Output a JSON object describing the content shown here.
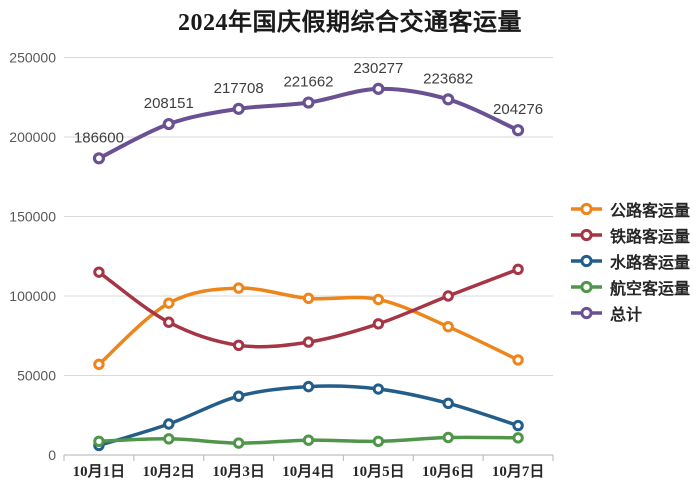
{
  "title": "2024年国庆假期综合交通客运量",
  "colors": {
    "road": "#EE851B",
    "rail": "#A63545",
    "water": "#235E8A",
    "air": "#50964A",
    "total": "#6A5193",
    "gridline": "#DADADA",
    "axis_line": "#C0C0C0",
    "y_tick_text": "#595959",
    "x_tick_text": "#262626",
    "data_label_text": "#3F3F3F",
    "legend_text": "#262626",
    "background": "#FFFFFF"
  },
  "y_axis": {
    "tick_labels": [
      "0",
      "50000",
      "100000",
      "150000",
      "200000",
      "250000"
    ]
  },
  "chart_data": {
    "type": "line",
    "title": "2024年国庆假期综合交通客运量",
    "categories": [
      "10月1日",
      "10月2日",
      "10月3日",
      "10月4日",
      "10月5日",
      "10月6日",
      "10月7日"
    ],
    "series": [
      {
        "name": "公路客运量",
        "key": "road",
        "color": "#EE851B",
        "values": [
          57000,
          95500,
          105000,
          98500,
          97800,
          80700,
          59800
        ]
      },
      {
        "name": "铁路客运量",
        "key": "rail",
        "color": "#A63545",
        "values": [
          115000,
          83500,
          69000,
          71000,
          82500,
          100000,
          116800
        ]
      },
      {
        "name": "水路客运量",
        "key": "water",
        "color": "#235E8A",
        "values": [
          6000,
          19500,
          37000,
          43000,
          41500,
          32500,
          18500
        ]
      },
      {
        "name": "航空客运量",
        "key": "air",
        "color": "#50964A",
        "values": [
          8600,
          10200,
          7500,
          9300,
          8600,
          11000,
          10800
        ]
      },
      {
        "name": "总计",
        "key": "total",
        "color": "#6A5193",
        "values": [
          186600,
          208151,
          217708,
          221662,
          230277,
          223682,
          204276
        ],
        "data_labels": [
          "186600",
          "208151",
          "217708",
          "221662",
          "230277",
          "223682",
          "204276"
        ]
      }
    ],
    "ylim": [
      0,
      250000
    ],
    "y_tick_step": 50000,
    "grid": "horizontal",
    "legend_position": "right",
    "marker": "open-circle"
  }
}
